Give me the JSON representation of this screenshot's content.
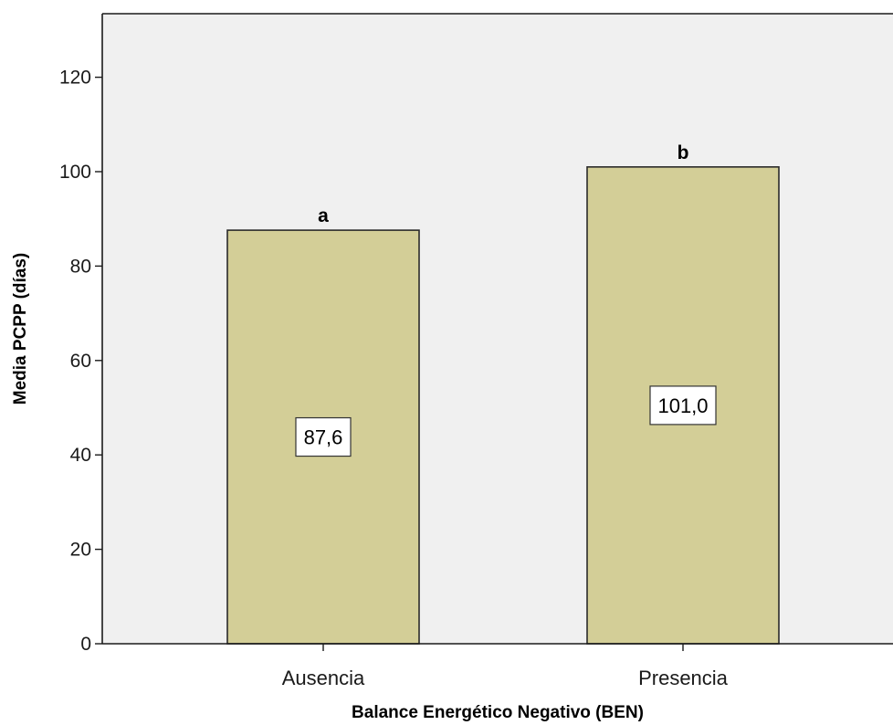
{
  "colors": {
    "plot_background": "#f0f0f0",
    "bar_fill": "#d3ce97",
    "bar_stroke": "#2b2b2b",
    "axis": "#1a1a1a"
  },
  "chart_data": {
    "type": "bar",
    "title": "",
    "xlabel": "Balance Energético Negativo (BEN)",
    "ylabel": "Media PCPP (días)",
    "categories": [
      "Ausencia",
      "Presencia"
    ],
    "values": [
      87.6,
      101.0
    ],
    "value_labels": [
      "87,6",
      "101,0"
    ],
    "significance_letters": [
      "a",
      "b"
    ],
    "ylim": [
      0,
      130
    ],
    "yticks": [
      0,
      20,
      40,
      60,
      80,
      100,
      120
    ],
    "grid": false,
    "legend": "none"
  }
}
